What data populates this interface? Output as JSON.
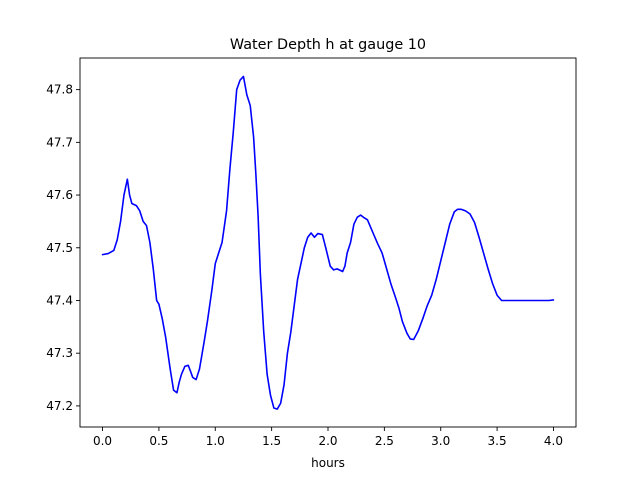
{
  "chart_data": {
    "type": "line",
    "title": "Water Depth h at gauge 10",
    "xlabel": "hours",
    "ylabel": "",
    "xlim": [
      -0.2,
      4.2
    ],
    "ylim": [
      47.16,
      47.86
    ],
    "xticks": [
      0.0,
      0.5,
      1.0,
      1.5,
      2.0,
      2.5,
      3.0,
      3.5,
      4.0
    ],
    "xtick_labels": [
      "0.0",
      "0.5",
      "1.0",
      "1.5",
      "2.0",
      "2.5",
      "3.0",
      "3.5",
      "4.0"
    ],
    "yticks": [
      47.2,
      47.3,
      47.4,
      47.5,
      47.6,
      47.7,
      47.8
    ],
    "ytick_labels": [
      "47.2",
      "47.3",
      "47.4",
      "47.5",
      "47.6",
      "47.7",
      "47.8"
    ],
    "grid": false,
    "series": [
      {
        "name": "",
        "color": "#0000ff",
        "x": [
          0.0,
          0.05,
          0.1,
          0.13,
          0.16,
          0.19,
          0.22,
          0.24,
          0.26,
          0.3,
          0.33,
          0.36,
          0.39,
          0.42,
          0.45,
          0.48,
          0.5,
          0.53,
          0.56,
          0.6,
          0.63,
          0.66,
          0.68,
          0.7,
          0.73,
          0.76,
          0.78,
          0.8,
          0.83,
          0.86,
          0.9,
          0.93,
          0.97,
          1.0,
          1.03,
          1.06,
          1.1,
          1.13,
          1.16,
          1.19,
          1.22,
          1.25,
          1.28,
          1.31,
          1.34,
          1.36,
          1.38,
          1.4,
          1.43,
          1.46,
          1.49,
          1.52,
          1.55,
          1.58,
          1.61,
          1.64,
          1.67,
          1.7,
          1.73,
          1.76,
          1.79,
          1.82,
          1.85,
          1.88,
          1.91,
          1.95,
          1.98,
          2.02,
          2.05,
          2.08,
          2.1,
          2.13,
          2.15,
          2.17,
          2.2,
          2.23,
          2.26,
          2.29,
          2.32,
          2.35,
          2.4,
          2.44,
          2.48,
          2.52,
          2.56,
          2.6,
          2.63,
          2.66,
          2.7,
          2.73,
          2.76,
          2.8,
          2.84,
          2.88,
          2.92,
          2.96,
          3.0,
          3.04,
          3.08,
          3.12,
          3.15,
          3.18,
          3.22,
          3.26,
          3.3,
          3.34,
          3.38,
          3.42,
          3.46,
          3.5,
          3.54,
          3.58,
          3.62,
          3.66,
          3.7,
          3.73,
          3.76,
          3.8,
          3.84,
          3.88,
          3.92,
          3.96,
          4.0
        ],
        "y": [
          47.487,
          47.489,
          47.495,
          47.515,
          47.55,
          47.6,
          47.63,
          47.6,
          47.584,
          47.58,
          47.57,
          47.55,
          47.542,
          47.51,
          47.46,
          47.4,
          47.393,
          47.365,
          47.33,
          47.27,
          47.23,
          47.225,
          47.245,
          47.26,
          47.275,
          47.277,
          47.266,
          47.254,
          47.25,
          47.27,
          47.32,
          47.36,
          47.42,
          47.47,
          47.49,
          47.51,
          47.57,
          47.65,
          47.72,
          47.8,
          47.818,
          47.825,
          47.79,
          47.77,
          47.71,
          47.64,
          47.56,
          47.45,
          47.34,
          47.26,
          47.22,
          47.196,
          47.194,
          47.205,
          47.24,
          47.3,
          47.34,
          47.39,
          47.44,
          47.47,
          47.5,
          47.52,
          47.528,
          47.52,
          47.527,
          47.525,
          47.5,
          47.465,
          47.458,
          47.46,
          47.458,
          47.455,
          47.465,
          47.49,
          47.51,
          47.545,
          47.558,
          47.562,
          47.557,
          47.553,
          47.528,
          47.508,
          47.49,
          47.46,
          47.43,
          47.405,
          47.385,
          47.36,
          47.338,
          47.327,
          47.326,
          47.342,
          47.365,
          47.39,
          47.41,
          47.44,
          47.475,
          47.51,
          47.545,
          47.568,
          47.573,
          47.573,
          47.57,
          47.564,
          47.548,
          47.52,
          47.49,
          47.46,
          47.432,
          47.41,
          47.4,
          47.4,
          47.4,
          47.4,
          47.4,
          47.4,
          47.4,
          47.4,
          47.4,
          47.4,
          47.4,
          47.4,
          47.401
        ]
      }
    ]
  }
}
